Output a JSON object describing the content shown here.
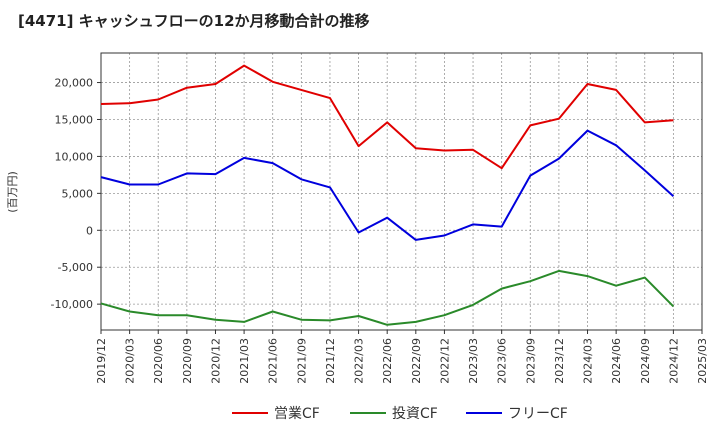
{
  "chart_data": {
    "type": "line",
    "title": "[4471]  キャッシュフローの12か月移動合計の推移",
    "ylabel": "(百万円)",
    "xlabel": "",
    "ylim": [
      -13500,
      24000
    ],
    "yticks": [
      -10000,
      -5000,
      0,
      5000,
      10000,
      15000,
      20000
    ],
    "ytick_labels": [
      "-10,000",
      "-5,000",
      "0",
      "5,000",
      "10,000",
      "15,000",
      "20,000"
    ],
    "categories": [
      "2019/12",
      "2020/03",
      "2020/06",
      "2020/09",
      "2020/12",
      "2021/03",
      "2021/06",
      "2021/09",
      "2021/12",
      "2022/03",
      "2022/06",
      "2022/09",
      "2022/12",
      "2023/03",
      "2023/06",
      "2023/09",
      "2023/12",
      "2024/03",
      "2024/06",
      "2024/09",
      "2024/12",
      "2025/03"
    ],
    "grid": true,
    "legend_position": "bottom",
    "series": [
      {
        "name": "営業CF",
        "color": "#e00000",
        "values": [
          17100,
          17200,
          17700,
          19300,
          19800,
          22300,
          20100,
          19000,
          17900,
          11400,
          14600,
          11100,
          10800,
          10900,
          8400,
          14200,
          15100,
          19800,
          19000,
          14600,
          14900,
          null
        ]
      },
      {
        "name": "投資CF",
        "color": "#2a8a2a",
        "values": [
          -9900,
          -11000,
          -11500,
          -11500,
          -12100,
          -12400,
          -11000,
          -12100,
          -12200,
          -11600,
          -12800,
          -12400,
          -11500,
          -10100,
          -7900,
          -6900,
          -5500,
          -6200,
          -7500,
          -6400,
          -10300,
          null
        ]
      },
      {
        "name": "フリーCF",
        "color": "#0000dd",
        "values": [
          7200,
          6200,
          6200,
          7700,
          7600,
          9800,
          9100,
          6900,
          5800,
          -300,
          1700,
          -1300,
          -700,
          800,
          500,
          7400,
          9700,
          13500,
          11500,
          8100,
          4600,
          null
        ]
      }
    ]
  }
}
